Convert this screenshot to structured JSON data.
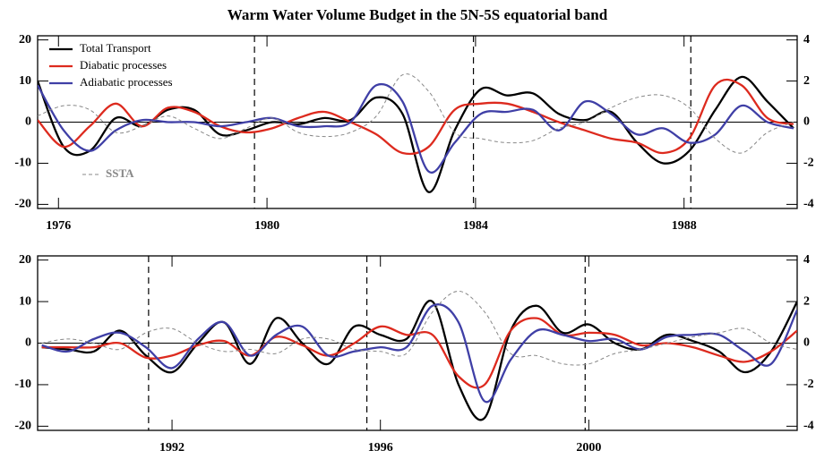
{
  "chart_data": [
    {
      "type": "line",
      "title": "Warm Water Volume Budget in the 5N-5S equatorial band",
      "x": [
        1975.6,
        1976.1,
        1976.6,
        1977.1,
        1977.6,
        1978.1,
        1978.6,
        1979.1,
        1979.6,
        1980.1,
        1980.6,
        1981.1,
        1981.6,
        1982.1,
        1982.6,
        1983.1,
        1983.6,
        1984.1,
        1984.6,
        1985.1,
        1985.6,
        1986.1,
        1986.6,
        1987.1,
        1987.6,
        1988.1,
        1988.6,
        1989.1,
        1989.6,
        1990.1
      ],
      "xlim": [
        1975.6,
        1990.17
      ],
      "xticks": [
        1976,
        1980,
        1984,
        1988
      ],
      "ylim": [
        -21,
        21
      ],
      "yticks": [
        -20,
        -10,
        0,
        10,
        20
      ],
      "y2lim": [
        -4.2,
        4.2
      ],
      "y2ticks": [
        -4,
        -2,
        0,
        2,
        4
      ],
      "vlines": [
        1979.76,
        1983.96,
        1988.13
      ],
      "legend": "upper left",
      "series": [
        {
          "name": "Total Transport",
          "color": "#000000",
          "values": [
            10,
            -6,
            -7,
            1,
            -1,
            3,
            3,
            -3,
            -2,
            0,
            -0.5,
            1,
            0.5,
            6,
            2,
            -17,
            -2,
            8,
            6.5,
            7,
            2,
            0.5,
            2.5,
            -5,
            -10,
            -7,
            3,
            11,
            5,
            -1.5
          ]
        },
        {
          "name": "Diabatic processes",
          "color": "#dd2a1e",
          "values": [
            0.5,
            -6,
            -1,
            4.5,
            -1,
            3.5,
            2.5,
            -1,
            -2.5,
            -1.5,
            1,
            2.5,
            0,
            -3,
            -7.5,
            -6,
            3,
            4.5,
            4.5,
            2.5,
            0,
            -2,
            -4,
            -5,
            -7.5,
            -4,
            9,
            9,
            1,
            -0.5
          ]
        },
        {
          "name": "Adiabatic processes",
          "color": "#3f3fa6",
          "values": [
            9,
            -2,
            -7,
            -2,
            0.5,
            0,
            0,
            -1,
            0,
            1,
            -1,
            -1,
            0,
            9,
            5,
            -12,
            -5,
            2,
            2.5,
            3,
            -2,
            5,
            2,
            -3,
            -1.5,
            -5,
            -3,
            4,
            0,
            -1.5
          ]
        },
        {
          "name": "SSTA",
          "color": "#888888",
          "dash": true,
          "axis": "y2",
          "values": [
            0.3,
            0.8,
            0.6,
            -0.5,
            -0.2,
            0.3,
            -0.3,
            -0.8,
            -0.3,
            0.2,
            -0.5,
            -0.7,
            -0.5,
            0.3,
            2.3,
            1.5,
            -0.5,
            -0.8,
            -1,
            -0.9,
            -0.3,
            0,
            0.7,
            1.2,
            1.3,
            0.7,
            -0.8,
            -1.5,
            -0.5,
            0
          ]
        }
      ]
    },
    {
      "type": "line",
      "x": [
        1989.5,
        1990,
        1990.5,
        1991,
        1991.5,
        1992,
        1992.5,
        1993,
        1993.5,
        1994,
        1994.5,
        1995,
        1995.5,
        1996,
        1996.5,
        1997,
        1997.5,
        1998,
        1998.5,
        1999,
        1999.5,
        2000,
        2000.5,
        2001,
        2001.5,
        2002,
        2002.5,
        2003,
        2003.5,
        2004
      ],
      "xlim": [
        1989.42,
        2004.0
      ],
      "xticks": [
        1992,
        1996,
        2000
      ],
      "ylim": [
        -21,
        21
      ],
      "yticks": [
        -20,
        -10,
        0,
        10,
        20
      ],
      "y2lim": [
        -4.2,
        4.2
      ],
      "y2ticks": [
        -4,
        -2,
        0,
        2,
        4
      ],
      "vlines": [
        1991.55,
        1995.74,
        1999.93
      ],
      "series": [
        {
          "color": "#000000",
          "values": [
            -1,
            -1.5,
            -2,
            3,
            -3,
            -7,
            0,
            5,
            -5,
            6,
            0,
            -5,
            4,
            2,
            1,
            10,
            -10,
            -18,
            3,
            9,
            2.5,
            4.5,
            0,
            -1.5,
            2,
            0.5,
            -2,
            -7,
            -2,
            10
          ]
        },
        {
          "color": "#dd2a1e",
          "values": [
            -1,
            -1,
            -1,
            0,
            -3.5,
            -3,
            -0.5,
            0.5,
            -3,
            1.5,
            -0.5,
            -3,
            0,
            4,
            2,
            2,
            -8,
            -10,
            3,
            6,
            2,
            2.5,
            2,
            -0.5,
            0,
            -1,
            -3,
            -4.5,
            -2,
            3
          ]
        },
        {
          "color": "#3f3fa6",
          "values": [
            -0.5,
            -2,
            1,
            2.5,
            -1,
            -6,
            1,
            5,
            -3,
            2,
            4,
            -3,
            -2,
            -1,
            -1,
            9,
            5,
            -14,
            -4,
            3,
            2,
            0.5,
            1,
            -1.5,
            1.5,
            2,
            2,
            -2,
            -5,
            8
          ]
        },
        {
          "color": "#888888",
          "dash": true,
          "axis": "y2",
          "values": [
            0,
            0.2,
            0,
            -0.3,
            0.5,
            0.7,
            0,
            -0.4,
            -0.3,
            -0.5,
            0.2,
            0.2,
            -0.3,
            -0.4,
            -0.5,
            1.5,
            2.5,
            1.5,
            -0.5,
            -0.6,
            -1,
            -1,
            -0.5,
            -0.3,
            0,
            0.3,
            0.5,
            0.7,
            0,
            -0.3
          ]
        }
      ]
    }
  ]
}
